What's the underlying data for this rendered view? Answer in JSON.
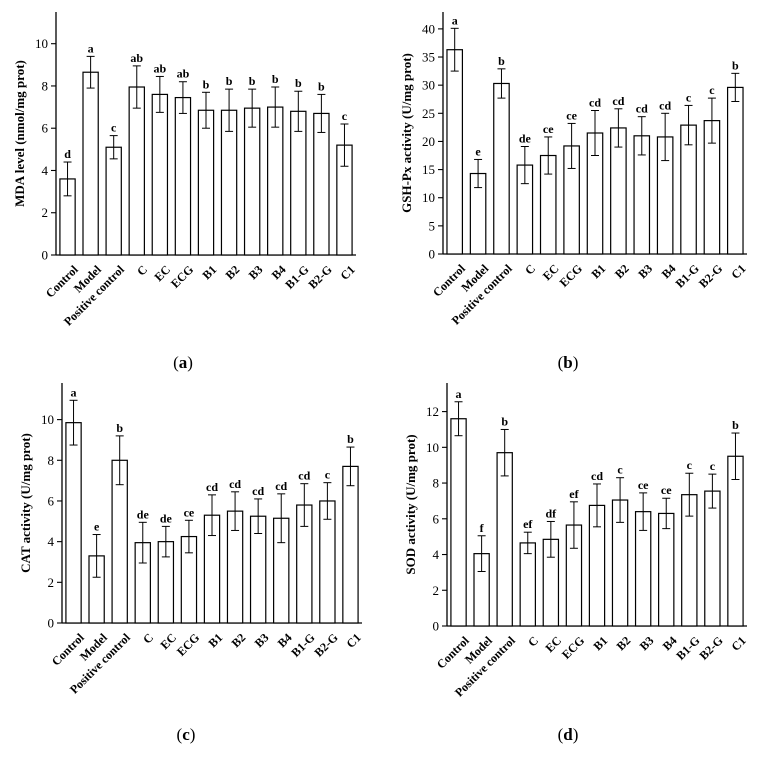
{
  "chart_data": [
    {
      "type": "bar",
      "panel_label": "a",
      "ylabel": "MDA level (nmol/mg prot)",
      "ylim": [
        0,
        11.5
      ],
      "yticks": [
        0,
        2,
        4,
        6,
        8,
        10
      ],
      "categories": [
        "Control",
        "Model",
        "Positive control",
        "C",
        "EC",
        "ECG",
        "B1",
        "B2",
        "B3",
        "B4",
        "B1-G",
        "B2-G",
        "C1"
      ],
      "values": [
        3.6,
        8.65,
        5.1,
        7.95,
        7.6,
        7.45,
        6.85,
        6.85,
        6.95,
        7.0,
        6.8,
        6.7,
        5.2
      ],
      "errors": [
        0.8,
        0.75,
        0.55,
        1.0,
        0.85,
        0.75,
        0.85,
        1.0,
        0.9,
        0.95,
        0.95,
        0.9,
        1.0
      ],
      "letters": [
        "d",
        "a",
        "c",
        "ab",
        "ab",
        "ab",
        "b",
        "b",
        "b",
        "b",
        "b",
        "b",
        "c"
      ]
    },
    {
      "type": "bar",
      "panel_label": "b",
      "ylabel": "GSH-Px activity (U/mg prot)",
      "ylim": [
        0,
        43
      ],
      "yticks": [
        0,
        5,
        10,
        15,
        20,
        25,
        30,
        35,
        40
      ],
      "categories": [
        "Control",
        "Model",
        "Positive control",
        "C",
        "EC",
        "ECG",
        "B1",
        "B2",
        "B3",
        "B4",
        "B1-G",
        "B2-G",
        "C1"
      ],
      "values": [
        36.3,
        14.3,
        30.3,
        15.8,
        17.5,
        19.2,
        21.5,
        22.4,
        21.0,
        20.8,
        22.9,
        23.7,
        29.6
      ],
      "errors": [
        3.8,
        2.5,
        2.6,
        3.3,
        3.3,
        4.0,
        4.0,
        3.4,
        3.4,
        4.2,
        3.5,
        4.0,
        2.5
      ],
      "letters": [
        "a",
        "e",
        "b",
        "de",
        "ce",
        "ce",
        "cd",
        "cd",
        "cd",
        "cd",
        "c",
        "c",
        "b"
      ]
    },
    {
      "type": "bar",
      "panel_label": "c",
      "ylabel": "CAT activity (U/mg prot)",
      "ylim": [
        0,
        11.8
      ],
      "yticks": [
        0,
        2,
        4,
        6,
        8,
        10
      ],
      "categories": [
        "Control",
        "Model",
        "Positive control",
        "C",
        "EC",
        "ECG",
        "B1",
        "B2",
        "B3",
        "B4",
        "B1-G",
        "B2-G",
        "C1"
      ],
      "values": [
        9.85,
        3.3,
        8.0,
        3.95,
        4.0,
        4.25,
        5.3,
        5.5,
        5.25,
        5.15,
        5.8,
        6.0,
        7.7
      ],
      "errors": [
        1.1,
        1.05,
        1.2,
        1.0,
        0.75,
        0.8,
        1.0,
        0.95,
        0.85,
        1.2,
        1.05,
        0.9,
        0.95
      ],
      "letters": [
        "a",
        "e",
        "b",
        "de",
        "de",
        "ce",
        "cd",
        "cd",
        "cd",
        "cd",
        "cd",
        "c",
        "b"
      ]
    },
    {
      "type": "bar",
      "panel_label": "d",
      "ylabel": "SOD activity (U/mg prot)",
      "ylim": [
        0,
        13.6
      ],
      "yticks": [
        0,
        2,
        4,
        6,
        8,
        10,
        12
      ],
      "categories": [
        "Control",
        "Model",
        "Positive control",
        "C",
        "EC",
        "ECG",
        "B1",
        "B2",
        "B3",
        "B4",
        "B1-G",
        "B2-G",
        "C1"
      ],
      "values": [
        11.6,
        4.05,
        9.7,
        4.65,
        4.85,
        5.65,
        6.75,
        7.05,
        6.4,
        6.3,
        7.35,
        7.55,
        9.5
      ],
      "errors": [
        0.95,
        1.0,
        1.3,
        0.6,
        1.0,
        1.3,
        1.2,
        1.25,
        1.05,
        0.85,
        1.2,
        0.95,
        1.3
      ],
      "letters": [
        "a",
        "f",
        "b",
        "ef",
        "df",
        "ef",
        "cd",
        "c",
        "ce",
        "ce",
        "c",
        "c",
        "b"
      ]
    }
  ]
}
